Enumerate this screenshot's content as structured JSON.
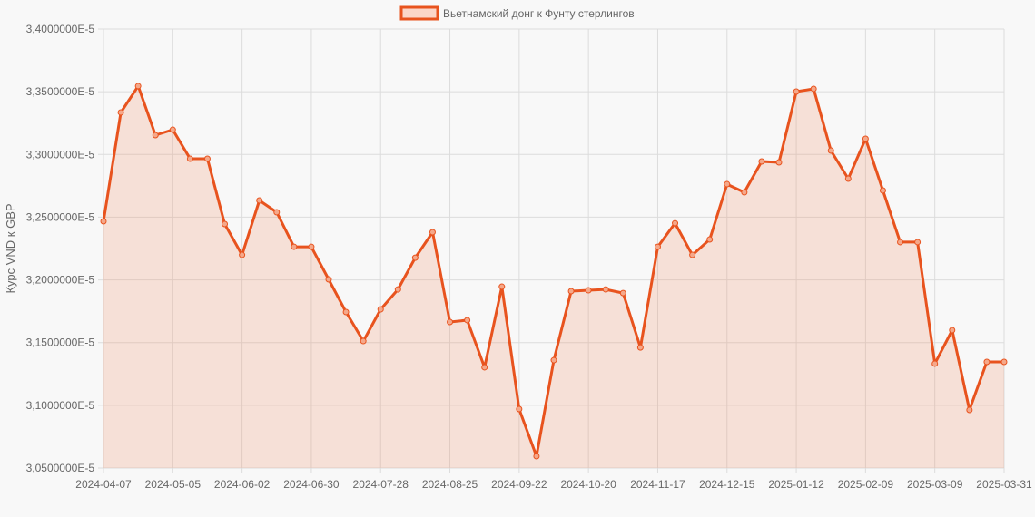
{
  "legend": {
    "label": "Вьетнамский донг к Фунту стерлингов",
    "swatch_fill": "#fbd6c8",
    "swatch_border": "#e8531e"
  },
  "colors": {
    "line": "#e8531e",
    "fill": "rgba(240,140,100,0.22)",
    "point_fill": "#f5a88a",
    "grid": "#dcdcdc",
    "background": "#f8f8f8",
    "text": "#666666"
  },
  "chart_data": {
    "type": "area",
    "title": "",
    "legend": [
      "Вьетнамский донг к Фунту стерлингов"
    ],
    "legend_position": "top",
    "xlabel": "",
    "ylabel": "Курс VND к GBP",
    "ylim": [
      3.05e-05,
      3.4e-05
    ],
    "grid": true,
    "y_ticks": [
      "3,4000000E-5",
      "3,3500000E-5",
      "3,3000000E-5",
      "3,2500000E-5",
      "3,2000000E-5",
      "3,1500000E-5",
      "3,1000000E-5",
      "3,0500000E-5"
    ],
    "x_ticks": [
      "2024-04-07",
      "2024-05-05",
      "2024-06-02",
      "2024-06-30",
      "2024-07-28",
      "2024-08-25",
      "2024-09-22",
      "2024-10-20",
      "2024-11-17",
      "2024-12-15",
      "2025-01-12",
      "2025-02-09",
      "2025-03-09",
      "2025-03-31"
    ],
    "x": [
      "2024-04-07",
      "2024-04-14",
      "2024-04-21",
      "2024-04-28",
      "2024-05-05",
      "2024-05-12",
      "2024-05-19",
      "2024-05-26",
      "2024-06-02",
      "2024-06-09",
      "2024-06-16",
      "2024-06-23",
      "2024-06-30",
      "2024-07-07",
      "2024-07-14",
      "2024-07-21",
      "2024-07-28",
      "2024-08-04",
      "2024-08-11",
      "2024-08-18",
      "2024-08-25",
      "2024-09-01",
      "2024-09-08",
      "2024-09-15",
      "2024-09-22",
      "2024-09-29",
      "2024-10-06",
      "2024-10-13",
      "2024-10-20",
      "2024-10-27",
      "2024-11-03",
      "2024-11-10",
      "2024-11-17",
      "2024-11-24",
      "2024-12-01",
      "2024-12-08",
      "2024-12-15",
      "2024-12-22",
      "2024-12-29",
      "2025-01-05",
      "2025-01-12",
      "2025-01-19",
      "2025-01-26",
      "2025-02-02",
      "2025-02-09",
      "2025-02-16",
      "2025-02-23",
      "2025-03-02",
      "2025-03-09",
      "2025-03-16",
      "2025-03-23",
      "2025-03-30",
      "2025-03-31"
    ],
    "series": [
      {
        "name": "Вьетнамский донг к Фунту стерлингов",
        "values": [
          3.2467e-05,
          3.3335e-05,
          3.3545e-05,
          3.3154e-05,
          3.3197e-05,
          3.2966e-05,
          3.2966e-05,
          3.2445e-05,
          3.2199e-05,
          3.2633e-05,
          3.2539e-05,
          3.2264e-05,
          3.2264e-05,
          3.2004e-05,
          3.1744e-05,
          3.1512e-05,
          3.1765e-05,
          3.1924e-05,
          3.2177e-05,
          3.238e-05,
          3.1664e-05,
          3.1679e-05,
          3.1303e-05,
          3.1946e-05,
          3.097e-05,
          3.0594e-05,
          3.136e-05,
          3.191e-05,
          3.1917e-05,
          3.1924e-05,
          3.1895e-05,
          3.1461e-05,
          3.2264e-05,
          3.2452e-05,
          3.2199e-05,
          3.2322e-05,
          3.2763e-05,
          3.2698e-05,
          3.2944e-05,
          3.2937e-05,
          3.3501e-05,
          3.3523e-05,
          3.3031e-05,
          3.2807e-05,
          3.3125e-05,
          3.2713e-05,
          3.2301e-05,
          3.2301e-05,
          3.1332e-05,
          3.1599e-05,
          3.0963e-05,
          3.1346e-05,
          3.1346e-05
        ]
      }
    ]
  }
}
